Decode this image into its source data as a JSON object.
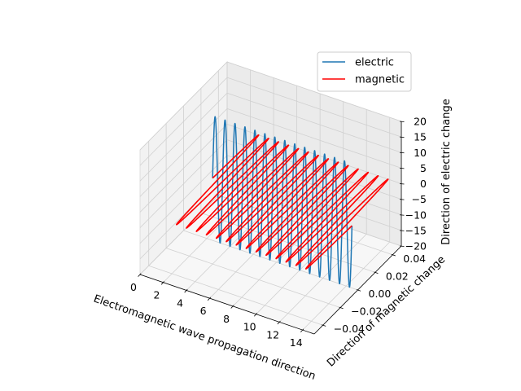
{
  "chart_data": {
    "type": "line",
    "projection": "3d",
    "grid": true,
    "legend_placement": "top-right",
    "xlabel": "Electromagnetic wave propagation direction",
    "ylabel": "Direction of magnetic change",
    "zlabel": "Direction of electric change",
    "xlim": [
      0,
      15
    ],
    "ylim": [
      -0.05,
      0.05
    ],
    "zlim": [
      -20,
      20
    ],
    "x_ticks": [
      0,
      2,
      4,
      6,
      8,
      10,
      12,
      14
    ],
    "x_tick_labels": [
      "0",
      "2",
      "4",
      "6",
      "8",
      "10",
      "12",
      "14"
    ],
    "y_ticks": [
      -0.04,
      -0.02,
      0.0,
      0.02,
      0.04
    ],
    "y_tick_labels": [
      "−0.04",
      "−0.02",
      "0.00",
      "0.02",
      "0.04"
    ],
    "z_ticks": [
      -20,
      -15,
      -10,
      -5,
      0,
      5,
      10,
      15,
      20
    ],
    "z_tick_labels": [
      "−20",
      "−15",
      "−10",
      "−5",
      "0",
      "5",
      "10",
      "15",
      "20"
    ],
    "wave": {
      "x_start": 2.5,
      "x_end": 14.5,
      "cycles": 14
    },
    "series": [
      {
        "name": "electric",
        "color": "#1f77b4",
        "direction": "z",
        "amplitude": 20
      },
      {
        "name": "magnetic",
        "color": "#ff0000",
        "direction": "y",
        "amplitude": 0.05
      }
    ]
  }
}
